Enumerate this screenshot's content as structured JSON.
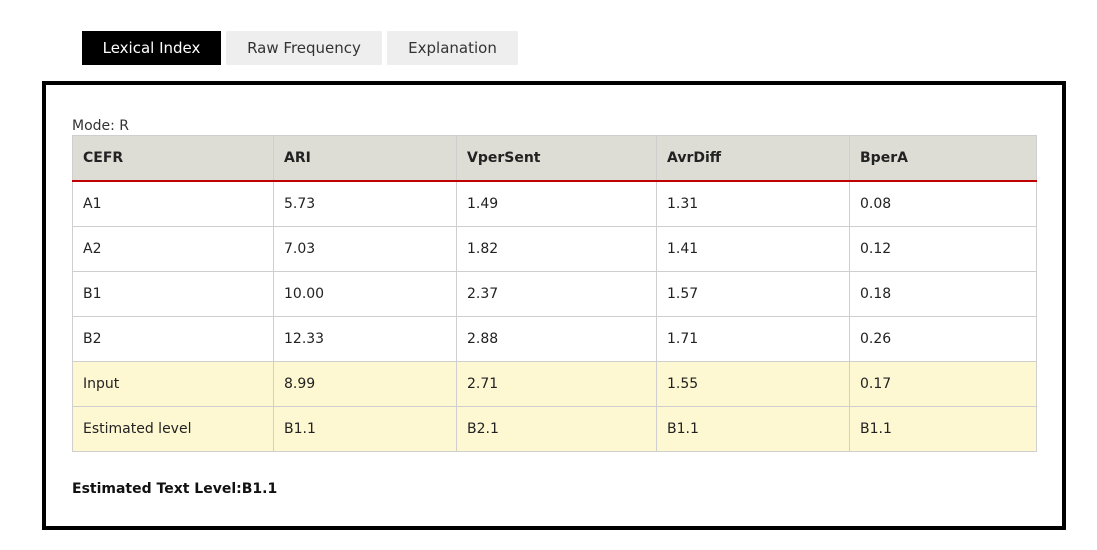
{
  "tabs": [
    {
      "label": "Lexical Index",
      "active": true
    },
    {
      "label": "Raw Frequency",
      "active": false
    },
    {
      "label": "Explanation",
      "active": false
    }
  ],
  "mode_label": "Mode: R",
  "table": {
    "headers": [
      "CEFR",
      "ARI",
      "VperSent",
      "AvrDiff",
      "BperA"
    ],
    "rows": [
      [
        "A1",
        "5.73",
        "1.49",
        "1.31",
        "0.08"
      ],
      [
        "A2",
        "7.03",
        "1.82",
        "1.41",
        "0.12"
      ],
      [
        "B1",
        "10.00",
        "2.37",
        "1.57",
        "0.18"
      ],
      [
        "B2",
        "12.33",
        "2.88",
        "1.71",
        "0.26"
      ],
      [
        "Input",
        "8.99",
        "2.71",
        "1.55",
        "0.17"
      ],
      [
        "Estimated level",
        "B1.1",
        "B2.1",
        "B1.1",
        "B1.1"
      ]
    ]
  },
  "estimate_text": "Estimated Text Level:B1.1",
  "colors": {
    "active_tab": "#000000",
    "header_bg": "#ddddd5",
    "header_rule": "#c00000",
    "highlight_bg": "#fdf8d2"
  }
}
